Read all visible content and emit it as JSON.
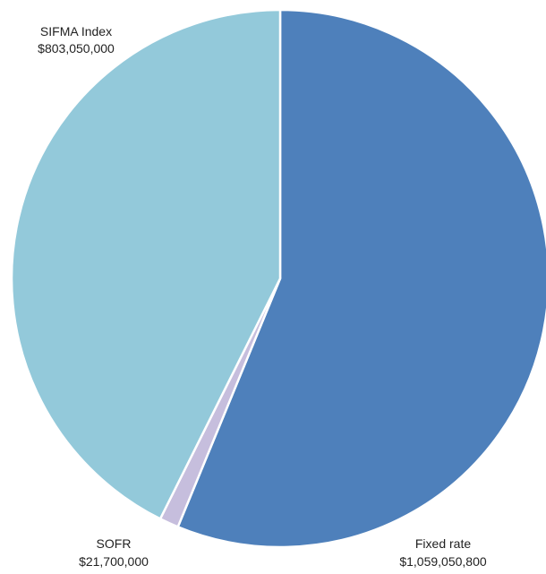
{
  "chart_data": {
    "type": "pie",
    "title": "",
    "start_angle_deg": 0,
    "direction": "clockwise",
    "slices": [
      {
        "label": "Fixed rate",
        "value_text": "$1,059,050,800",
        "value": 1059050800,
        "color": "#4e80bb"
      },
      {
        "label": "SOFR",
        "value_text": "$21,700,000",
        "value": 21700000,
        "color": "#c6bedd"
      },
      {
        "label": "SIFMA Index",
        "value_text": "$803,050,000",
        "value": 803050000,
        "color": "#93c9da"
      }
    ],
    "legend": "none",
    "labels_outside": true
  }
}
